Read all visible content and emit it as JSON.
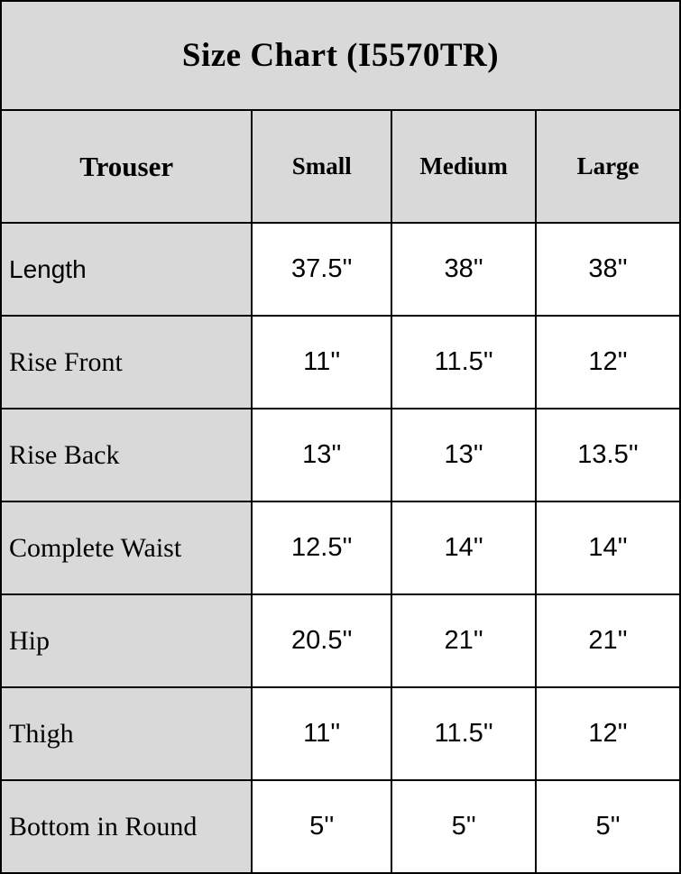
{
  "chart_data": {
    "type": "table",
    "title": "Size Chart (I5570TR)",
    "header": {
      "corner": "Trouser",
      "columns": [
        "Small",
        "Medium",
        "Large"
      ]
    },
    "rows": [
      {
        "label": "Length",
        "values": [
          "37.5''",
          "38''",
          "38''"
        ]
      },
      {
        "label": "Rise Front",
        "values": [
          "11''",
          "11.5''",
          "12''"
        ]
      },
      {
        "label": "Rise Back",
        "values": [
          "13''",
          "13''",
          "13.5''"
        ]
      },
      {
        "label": "Complete Waist",
        "values": [
          "12.5''",
          "14''",
          "14''"
        ]
      },
      {
        "label": "Hip",
        "values": [
          "20.5''",
          "21''",
          "21''"
        ]
      },
      {
        "label": "Thigh",
        "values": [
          "11''",
          "11.5''",
          "12''"
        ]
      },
      {
        "label": "Bottom in Round",
        "values": [
          "5''",
          "5''",
          "5''"
        ]
      }
    ]
  },
  "colors": {
    "cell_bg_gray": "#d9d9d9",
    "cell_bg_white": "#ffffff",
    "border": "#000000",
    "text": "#000000"
  }
}
